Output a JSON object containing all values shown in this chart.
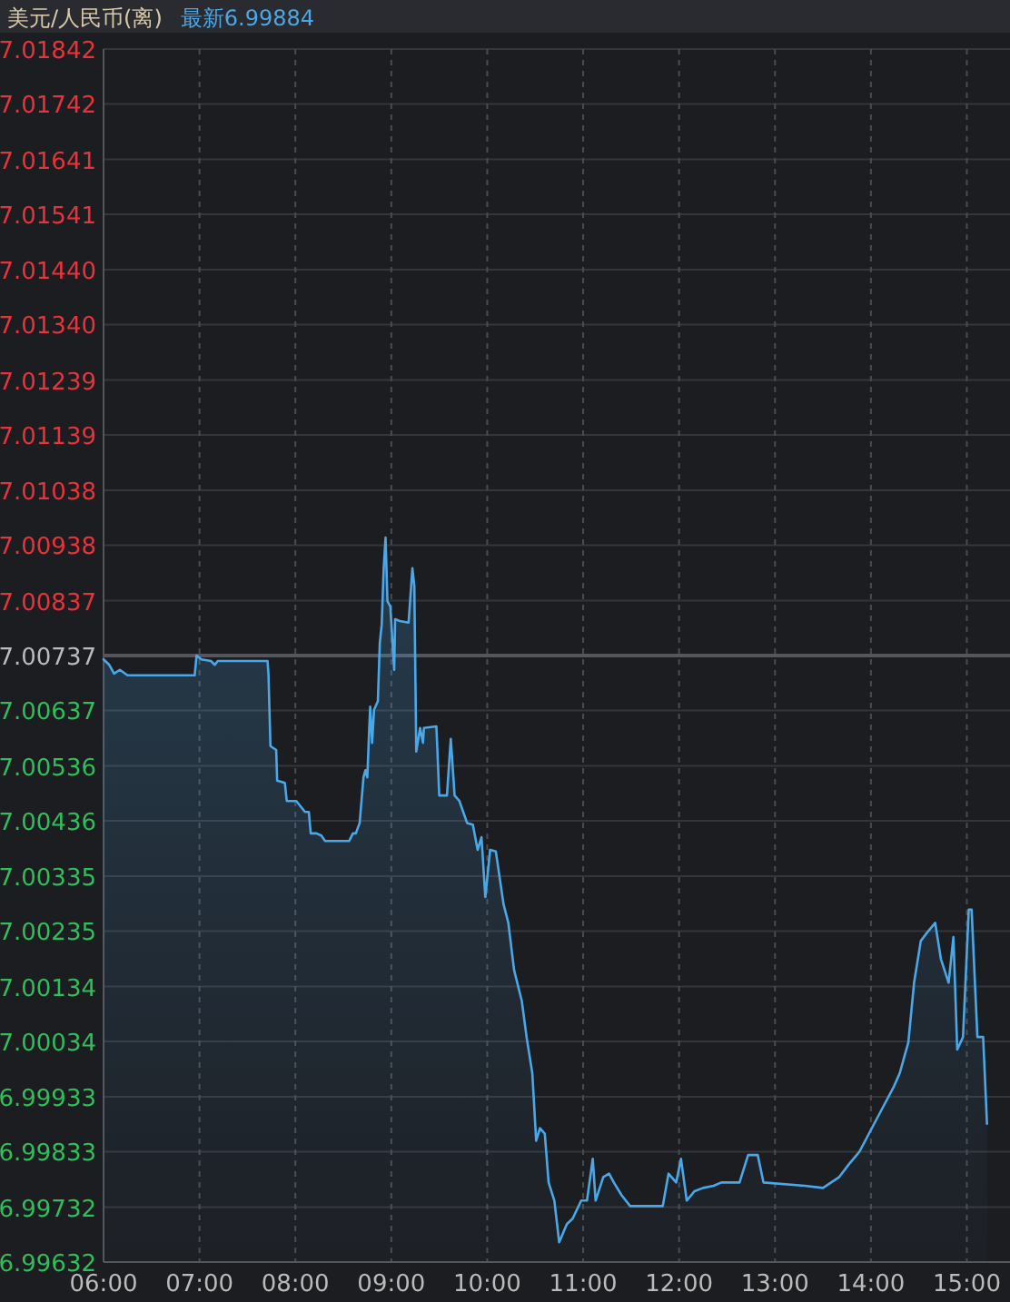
{
  "chart_data": {
    "type": "area",
    "title": "美元/人民币(离)",
    "subtitle": "最新6.99884",
    "x": [
      6.0,
      6.06,
      6.11,
      6.17,
      6.25,
      6.95,
      6.97,
      7.02,
      7.12,
      7.16,
      7.19,
      7.71,
      7.72,
      7.74,
      7.8,
      7.81,
      7.89,
      7.91,
      8.01,
      8.1,
      8.14,
      8.16,
      8.22,
      8.27,
      8.31,
      8.56,
      8.6,
      8.63,
      8.67,
      8.71,
      8.73,
      8.75,
      8.77,
      8.78,
      8.8,
      8.82,
      8.86,
      8.88,
      8.9,
      8.92,
      8.94,
      8.96,
      8.99,
      9.03,
      9.04,
      9.09,
      9.18,
      9.22,
      9.24,
      9.26,
      9.3,
      9.33,
      9.34,
      9.47,
      9.5,
      9.58,
      9.62,
      9.66,
      9.71,
      9.79,
      9.85,
      9.9,
      9.94,
      9.98,
      10.03,
      10.09,
      10.17,
      10.22,
      10.28,
      10.36,
      10.41,
      10.47,
      10.51,
      10.55,
      10.6,
      10.64,
      10.7,
      10.75,
      10.83,
      10.89,
      10.98,
      11.04,
      11.1,
      11.13,
      11.21,
      11.27,
      11.32,
      11.4,
      11.49,
      11.61,
      11.83,
      11.89,
      11.97,
      12.02,
      12.08,
      12.16,
      12.25,
      12.36,
      12.44,
      12.63,
      12.72,
      12.82,
      12.88,
      13.31,
      13.5,
      13.67,
      13.77,
      13.88,
      14.01,
      14.14,
      14.24,
      14.3,
      14.39,
      14.45,
      14.52,
      14.58,
      14.67,
      14.73,
      14.81,
      14.86,
      14.9,
      14.96,
      15.02,
      15.05,
      15.11,
      15.17,
      15.21
    ],
    "series": [
      {
        "color": "#4aa8e8",
        "values": [
          7.0073,
          7.0072,
          7.00704,
          7.00711,
          7.00701,
          7.00701,
          7.00737,
          7.0073,
          7.00727,
          7.0072,
          7.00727,
          7.00727,
          7.00701,
          7.00572,
          7.00565,
          7.00509,
          7.00505,
          7.00472,
          7.00472,
          7.00452,
          7.00452,
          7.00413,
          7.00413,
          7.00409,
          7.00399,
          7.00399,
          7.00413,
          7.00413,
          7.00432,
          7.00515,
          7.00528,
          7.00515,
          7.00605,
          7.00644,
          7.00578,
          7.00638,
          7.00654,
          7.0076,
          7.00793,
          7.00893,
          7.00952,
          7.00836,
          7.00826,
          7.00711,
          7.00803,
          7.008,
          7.00797,
          7.00896,
          7.00863,
          7.00562,
          7.00605,
          7.00578,
          7.00605,
          7.00608,
          7.00482,
          7.00482,
          7.00585,
          7.00482,
          7.00472,
          7.00432,
          7.00429,
          7.00383,
          7.00406,
          7.00297,
          7.00383,
          7.0038,
          7.00284,
          7.0025,
          7.00164,
          7.00108,
          7.00042,
          6.99976,
          6.99853,
          6.99876,
          6.99866,
          6.99777,
          6.99744,
          6.99668,
          6.99701,
          6.99711,
          6.99744,
          6.99744,
          6.9982,
          6.99744,
          6.99787,
          6.99793,
          6.99777,
          6.99754,
          6.99734,
          6.99734,
          6.99734,
          6.99793,
          6.99777,
          6.9982,
          6.99744,
          6.99761,
          6.99767,
          6.99771,
          6.99777,
          6.99777,
          6.99827,
          6.99827,
          6.99777,
          6.99771,
          6.99767,
          6.99787,
          6.9981,
          6.99833,
          6.99876,
          6.99919,
          6.99952,
          6.99976,
          7.00032,
          7.00141,
          7.00217,
          7.00231,
          7.0025,
          7.00184,
          7.00141,
          7.00224,
          7.00019,
          7.00042,
          7.00274,
          7.00274,
          7.00042,
          7.00042,
          6.99884
        ]
      }
    ],
    "xlim": [
      6,
      15.45
    ],
    "xticks": [
      {
        "value": 6,
        "label": "06:00"
      },
      {
        "value": 7,
        "label": "07:00"
      },
      {
        "value": 8,
        "label": "08:00"
      },
      {
        "value": 9,
        "label": "09:00"
      },
      {
        "value": 10,
        "label": "10:00"
      },
      {
        "value": 11,
        "label": "11:00"
      },
      {
        "value": 12,
        "label": "12:00"
      },
      {
        "value": 13,
        "label": "13:00"
      },
      {
        "value": 14,
        "label": "14:00"
      },
      {
        "value": 15,
        "label": "15:00"
      }
    ],
    "ylim": [
      6.99632,
      7.01842
    ],
    "yticks": [
      7.01842,
      7.01742,
      7.01641,
      7.01541,
      {
        "value": 7.0144,
        "label": "7.01440"
      },
      {
        "value": 7.0134,
        "label": "7.01340"
      },
      7.01239,
      7.01139,
      7.01038,
      7.00938,
      7.00837,
      7.00737,
      7.00637,
      7.00536,
      7.00436,
      7.00335,
      7.00235,
      7.00134,
      7.00034,
      6.99933,
      6.99833,
      6.99732,
      6.99632
    ],
    "grid": true,
    "ref_lines": [
      {
        "axis": "y",
        "value": 7.00737,
        "color": "#55565b"
      }
    ]
  }
}
